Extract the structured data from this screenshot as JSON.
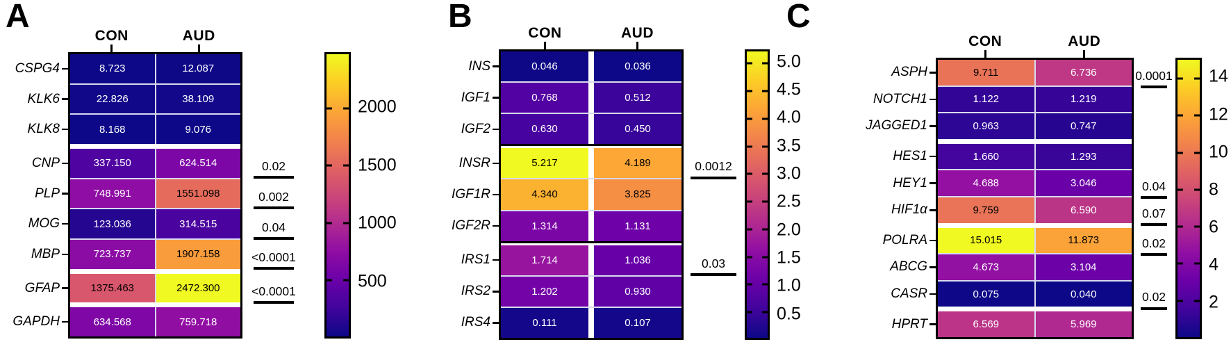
{
  "colors": {
    "background": "#ffffff",
    "border": "#000000",
    "thin_row_separator": "#d9d9ee",
    "colormap_name": "plasma",
    "plasma_anchors": [
      "#0d0887",
      "#41049d",
      "#6a00a8",
      "#8f0da4",
      "#b12a90",
      "#cc4778",
      "#e16462",
      "#f2844b",
      "#fca636",
      "#fcce25",
      "#f0f921"
    ]
  },
  "chart_data": [
    {
      "type": "heatmap",
      "panel_label": "A",
      "columns": [
        "CON",
        "AUD"
      ],
      "colorbar": {
        "min": 8.168,
        "max": 2472.3,
        "tick_values": [
          2000,
          1500,
          1000,
          500
        ],
        "tick_labels": [
          "2000",
          "1500",
          "1000",
          "500"
        ]
      },
      "separator_style": "white",
      "groups": [
        {
          "rows": [
            {
              "gene": "CSPG4",
              "con": "8.723",
              "aud": "12.087",
              "p": null
            },
            {
              "gene": "KLK6",
              "con": "22.826",
              "aud": "38.109",
              "p": null
            },
            {
              "gene": "KLK8",
              "con": "8.168",
              "aud": "9.076",
              "p": null
            }
          ]
        },
        {
          "rows": [
            {
              "gene": "CNP",
              "con": "337.150",
              "aud": "624.514",
              "p": "0.02"
            },
            {
              "gene": "PLP",
              "con": "748.991",
              "aud": "1551.098",
              "p": "0.002"
            },
            {
              "gene": "MOG",
              "con": "123.036",
              "aud": "314.515",
              "p": "0.04"
            },
            {
              "gene": "MBP",
              "con": "723.737",
              "aud": "1907.158",
              "p": "<0.0001"
            }
          ]
        },
        {
          "rows": [
            {
              "gene": "GFAP",
              "con": "1375.463",
              "aud": "2472.300",
              "p": "<0.0001"
            }
          ]
        },
        {
          "rows": [
            {
              "gene": "GAPDH",
              "con": "634.568",
              "aud": "759.718",
              "p": null
            }
          ]
        }
      ]
    },
    {
      "type": "heatmap",
      "panel_label": "B",
      "columns": [
        "CON",
        "AUD"
      ],
      "colorbar": {
        "min": 0.036,
        "max": 5.217,
        "tick_values": [
          5.0,
          4.5,
          4.0,
          3.5,
          3.0,
          2.5,
          2.0,
          1.5,
          1.0,
          0.5
        ],
        "tick_labels": [
          "5.0",
          "4.5",
          "4.0",
          "3.5",
          "3.0",
          "2.5",
          "2.0",
          "1.5",
          "1.0",
          "0.5"
        ]
      },
      "separator_style": "black",
      "groups": [
        {
          "rows": [
            {
              "gene": "INS",
              "con": "0.046",
              "aud": "0.036",
              "p": null
            },
            {
              "gene": "IGF1",
              "con": "0.768",
              "aud": "0.512",
              "p": null
            },
            {
              "gene": "IGF2",
              "con": "0.630",
              "aud": "0.450",
              "p": null
            }
          ]
        },
        {
          "rows": [
            {
              "gene": "INSR",
              "con": "5.217",
              "aud": "4.189",
              "p": "0.0012"
            },
            {
              "gene": "IGF1R",
              "con": "4.340",
              "aud": "3.825",
              "p": null
            },
            {
              "gene": "IGF2R",
              "con": "1.314",
              "aud": "1.131",
              "p": null
            }
          ]
        },
        {
          "rows": [
            {
              "gene": "IRS1",
              "con": "1.714",
              "aud": "1.036",
              "p": "0.03"
            },
            {
              "gene": "IRS2",
              "con": "1.202",
              "aud": "0.930",
              "p": null
            },
            {
              "gene": "IRS4",
              "con": "0.111",
              "aud": "0.107",
              "p": null
            }
          ]
        }
      ]
    },
    {
      "type": "heatmap",
      "panel_label": "C",
      "columns": [
        "CON",
        "AUD"
      ],
      "colorbar": {
        "min": 0.04,
        "max": 15.015,
        "tick_values": [
          14,
          12,
          10,
          8,
          6,
          4,
          2
        ],
        "tick_labels": [
          "14",
          "12",
          "10",
          "8",
          "6",
          "4",
          "2"
        ]
      },
      "separator_style": "white",
      "groups": [
        {
          "rows": [
            {
              "gene": "ASPH",
              "con": "9.711",
              "aud": "6.736",
              "p": "0.0001"
            },
            {
              "gene": "NOTCH1",
              "con": "1.122",
              "aud": "1.219",
              "p": null
            },
            {
              "gene": "JAGGED1",
              "con": "0.963",
              "aud": "0.747",
              "p": null
            }
          ]
        },
        {
          "rows": [
            {
              "gene": "HES1",
              "con": "1.660",
              "aud": "1.293",
              "p": null
            },
            {
              "gene": "HEY1",
              "con": "4.688",
              "aud": "3.046",
              "p": "0.04"
            },
            {
              "gene": "HIF1α",
              "con": "9.759",
              "aud": "6.590",
              "p": "0.07"
            }
          ]
        },
        {
          "rows": [
            {
              "gene": "POLRA",
              "con": "15.015",
              "aud": "11.873",
              "p": "0.02"
            },
            {
              "gene": "ABCG",
              "con": "4.673",
              "aud": "3.104",
              "p": null
            },
            {
              "gene": "CASR",
              "con": "0.075",
              "aud": "0.040",
              "p": "0.02"
            }
          ]
        },
        {
          "rows": [
            {
              "gene": "HPRT",
              "con": "6.569",
              "aud": "5.969",
              "p": null
            }
          ]
        }
      ]
    }
  ]
}
